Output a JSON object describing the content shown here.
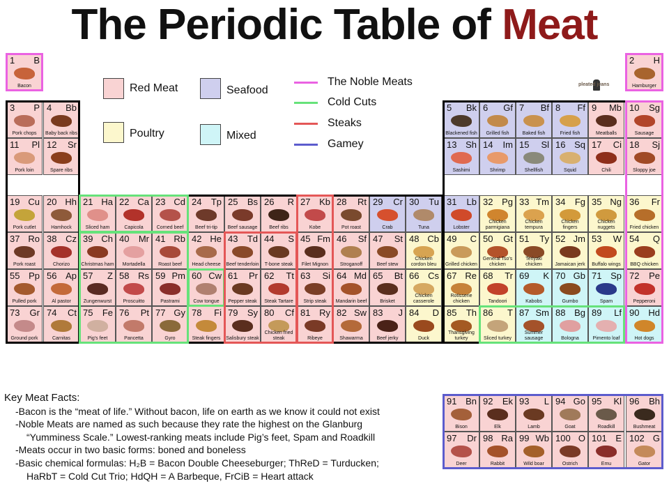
{
  "title": {
    "main": "The Periodic Table of",
    "accent": "Meat"
  },
  "colors": {
    "red_meat": "#f9d3d3",
    "poultry": "#fcf7cd",
    "seafood": "#cfcfee",
    "mixed": "#cff5f7",
    "noble": "#ea62e2",
    "cold_cuts": "#66e27a",
    "steaks": "#e45757",
    "gamey": "#5c5ccd",
    "frame": "#000000",
    "accent": "#8e1a1a"
  },
  "legend": {
    "categories": [
      {
        "label": "Red Meat",
        "cat": "red_meat"
      },
      {
        "label": "Poultry",
        "cat": "poultry"
      },
      {
        "label": "Seafood",
        "cat": "seafood"
      },
      {
        "label": "Mixed",
        "cat": "mixed"
      }
    ],
    "groups": [
      {
        "label": "The Noble Meats",
        "group": "noble"
      },
      {
        "label": "Cold Cuts",
        "group": "cold_cuts"
      },
      {
        "label": "Steaks",
        "group": "steaks"
      },
      {
        "label": "Gamey",
        "group": "gamey"
      }
    ]
  },
  "logo": {
    "text": "pleated jeans"
  },
  "elements": [
    {
      "n": "1",
      "s": "B",
      "name": "Bacon",
      "row": 1,
      "col": 1,
      "cat": "red_meat",
      "pic": "#c7633a"
    },
    {
      "n": "2",
      "s": "H",
      "name": "Hamburger",
      "row": 1,
      "col": 18,
      "cat": "red_meat",
      "pic": "#a8642e"
    },
    {
      "n": "3",
      "s": "P",
      "name": "Pork chops",
      "row": 2,
      "col": 1,
      "cat": "red_meat",
      "pic": "#b96d5a"
    },
    {
      "n": "4",
      "s": "Bb",
      "name": "Baby back ribs",
      "row": 2,
      "col": 2,
      "cat": "red_meat",
      "pic": "#7a3a1e"
    },
    {
      "n": "5",
      "s": "Bk",
      "name": "Blackened fish",
      "row": 2,
      "col": 13,
      "cat": "seafood",
      "pic": "#4d3a2a"
    },
    {
      "n": "6",
      "s": "Gf",
      "name": "Grilled fish",
      "row": 2,
      "col": 14,
      "cat": "seafood",
      "pic": "#c28a4a"
    },
    {
      "n": "7",
      "s": "Bf",
      "name": "Baked fish",
      "row": 2,
      "col": 15,
      "cat": "seafood",
      "pic": "#c9924e"
    },
    {
      "n": "8",
      "s": "Ff",
      "name": "Fried fish",
      "row": 2,
      "col": 16,
      "cat": "seafood",
      "pic": "#d6a04a"
    },
    {
      "n": "9",
      "s": "Mb",
      "name": "Meatballs",
      "row": 2,
      "col": 17,
      "cat": "red_meat",
      "pic": "#5a2e1e"
    },
    {
      "n": "10",
      "s": "Sg",
      "name": "Sausage",
      "row": 2,
      "col": 18,
      "cat": "red_meat",
      "pic": "#b2452a"
    },
    {
      "n": "11",
      "s": "Pl",
      "name": "Pork loin",
      "row": 3,
      "col": 1,
      "cat": "red_meat",
      "pic": "#d99a7a"
    },
    {
      "n": "12",
      "s": "Sr",
      "name": "Spare ribs",
      "row": 3,
      "col": 2,
      "cat": "red_meat",
      "pic": "#8a3e1c"
    },
    {
      "n": "13",
      "s": "Sh",
      "name": "Sashimi",
      "row": 3,
      "col": 13,
      "cat": "seafood",
      "pic": "#e06a50"
    },
    {
      "n": "14",
      "s": "Im",
      "name": "Shrimp",
      "row": 3,
      "col": 14,
      "cat": "seafood",
      "pic": "#e89a6a"
    },
    {
      "n": "15",
      "s": "Sl",
      "name": "Shellfish",
      "row": 3,
      "col": 15,
      "cat": "seafood",
      "pic": "#8a8a7a"
    },
    {
      "n": "16",
      "s": "Sq",
      "name": "Squid",
      "row": 3,
      "col": 16,
      "cat": "seafood",
      "pic": "#d8b070"
    },
    {
      "n": "17",
      "s": "Ci",
      "name": "Chili",
      "row": 3,
      "col": 17,
      "cat": "red_meat",
      "pic": "#8e2e1a"
    },
    {
      "n": "18",
      "s": "Sj",
      "name": "Sloppy joe",
      "row": 3,
      "col": 18,
      "cat": "red_meat",
      "pic": "#a04a26"
    },
    {
      "n": "19",
      "s": "Cu",
      "name": "Pork cutlet",
      "row": 4,
      "col": 1,
      "cat": "red_meat",
      "pic": "#c4a43a"
    },
    {
      "n": "20",
      "s": "Hh",
      "name": "Hamhock",
      "row": 4,
      "col": 2,
      "cat": "red_meat",
      "pic": "#8e5a3a"
    },
    {
      "n": "21",
      "s": "Ha",
      "name": "Sliced ham",
      "row": 4,
      "col": 3,
      "cat": "red_meat",
      "pic": "#e0908a"
    },
    {
      "n": "22",
      "s": "Ca",
      "name": "Capicola",
      "row": 4,
      "col": 4,
      "cat": "red_meat",
      "pic": "#b2322a"
    },
    {
      "n": "23",
      "s": "Cd",
      "name": "Corned beef",
      "row": 4,
      "col": 5,
      "cat": "red_meat",
      "pic": "#b4524a"
    },
    {
      "n": "24",
      "s": "Tp",
      "name": "Beef tri-tip",
      "row": 4,
      "col": 6,
      "cat": "red_meat",
      "pic": "#6e3a2a"
    },
    {
      "n": "25",
      "s": "Bs",
      "name": "Beef sausage",
      "row": 4,
      "col": 7,
      "cat": "red_meat",
      "pic": "#7a3a2a"
    },
    {
      "n": "26",
      "s": "R",
      "name": "Beef ribs",
      "row": 4,
      "col": 8,
      "cat": "red_meat",
      "pic": "#3e2418"
    },
    {
      "n": "27",
      "s": "Kb",
      "name": "Kobe",
      "row": 4,
      "col": 9,
      "cat": "red_meat",
      "pic": "#c24a4a"
    },
    {
      "n": "28",
      "s": "Rt",
      "name": "Pot roast",
      "row": 4,
      "col": 10,
      "cat": "red_meat",
      "pic": "#7a4a2e"
    },
    {
      "n": "29",
      "s": "Cr",
      "name": "Crab",
      "row": 4,
      "col": 11,
      "cat": "seafood",
      "pic": "#d6502e"
    },
    {
      "n": "30",
      "s": "Tu",
      "name": "Tuna",
      "row": 4,
      "col": 12,
      "cat": "seafood",
      "pic": "#b08a6a"
    },
    {
      "n": "31",
      "s": "Lb",
      "name": "Lobster",
      "row": 4,
      "col": 13,
      "cat": "seafood",
      "pic": "#d04a2a"
    },
    {
      "n": "32",
      "s": "Pg",
      "name": "Chicken parmigiana",
      "row": 4,
      "col": 14,
      "cat": "poultry",
      "pic": "#d0852e"
    },
    {
      "n": "33",
      "s": "Tm",
      "name": "Chicken tempura",
      "row": 4,
      "col": 15,
      "cat": "poultry",
      "pic": "#dba24e"
    },
    {
      "n": "34",
      "s": "Fg",
      "name": "Chicken fingers",
      "row": 4,
      "col": 16,
      "cat": "poultry",
      "pic": "#d39a3a"
    },
    {
      "n": "35",
      "s": "Ng",
      "name": "Chicken nuggets",
      "row": 4,
      "col": 17,
      "cat": "poultry",
      "pic": "#d09a3e"
    },
    {
      "n": "36",
      "s": "Fr",
      "name": "Fried chicken",
      "row": 4,
      "col": 18,
      "cat": "poultry",
      "pic": "#b66e2a"
    },
    {
      "n": "37",
      "s": "Ro",
      "name": "Pork roast",
      "row": 5,
      "col": 1,
      "cat": "red_meat",
      "pic": "#6e3a26"
    },
    {
      "n": "38",
      "s": "Cz",
      "name": "Chorizo",
      "row": 5,
      "col": 2,
      "cat": "red_meat",
      "pic": "#a4322a"
    },
    {
      "n": "39",
      "s": "Ch",
      "name": "Christmas ham",
      "row": 5,
      "col": 3,
      "cat": "red_meat",
      "pic": "#8a3a22"
    },
    {
      "n": "40",
      "s": "Mr",
      "name": "Mortadella",
      "row": 5,
      "col": 4,
      "cat": "red_meat",
      "pic": "#e4a0a0"
    },
    {
      "n": "41",
      "s": "Rb",
      "name": "Roast beef",
      "row": 5,
      "col": 5,
      "cat": "red_meat",
      "pic": "#a84a3a"
    },
    {
      "n": "42",
      "s": "He",
      "name": "Head cheese",
      "row": 5,
      "col": 6,
      "cat": "red_meat",
      "pic": "#a86a4a"
    },
    {
      "n": "43",
      "s": "Td",
      "name": "Beef tenderloin",
      "row": 5,
      "col": 7,
      "cat": "red_meat",
      "pic": "#8a4a2a"
    },
    {
      "n": "44",
      "s": "S",
      "name": "T-bone steak",
      "row": 5,
      "col": 8,
      "cat": "red_meat",
      "pic": "#6a3a22"
    },
    {
      "n": "45",
      "s": "Fm",
      "name": "Filet Mignon",
      "row": 5,
      "col": 9,
      "cat": "red_meat",
      "pic": "#5a2e1e"
    },
    {
      "n": "46",
      "s": "Sf",
      "name": "Stroganoff",
      "row": 5,
      "col": 10,
      "cat": "red_meat",
      "pic": "#b08050"
    },
    {
      "n": "47",
      "s": "St",
      "name": "Beef stew",
      "row": 5,
      "col": 11,
      "cat": "red_meat",
      "pic": "#8a4a26"
    },
    {
      "n": "48",
      "s": "Cb",
      "name": "Chicken cordon bleu",
      "row": 5,
      "col": 12,
      "cat": "poultry",
      "pic": "#d7a452"
    },
    {
      "n": "49",
      "s": "C",
      "name": "Grilled chicken",
      "row": 5,
      "col": 13,
      "cat": "poultry",
      "pic": "#c99a5a"
    },
    {
      "n": "50",
      "s": "Gt",
      "name": "General Tso's chicken",
      "row": 5,
      "col": 14,
      "cat": "poultry",
      "pic": "#b4532a"
    },
    {
      "n": "51",
      "s": "Ty",
      "name": "Teriyaki chicken",
      "row": 5,
      "col": 15,
      "cat": "poultry",
      "pic": "#8a4a26"
    },
    {
      "n": "52",
      "s": "Jm",
      "name": "Jamaican jerk",
      "row": 5,
      "col": 16,
      "cat": "poultry",
      "pic": "#7a3a1e"
    },
    {
      "n": "53",
      "s": "W",
      "name": "Buffalo wings",
      "row": 5,
      "col": 17,
      "cat": "poultry",
      "pic": "#c24a1e"
    },
    {
      "n": "54",
      "s": "Q",
      "name": "BBQ chicken",
      "row": 5,
      "col": 18,
      "cat": "poultry",
      "pic": "#9a3e1e"
    },
    {
      "n": "55",
      "s": "Pp",
      "name": "Pulled pork",
      "row": 6,
      "col": 1,
      "cat": "red_meat",
      "pic": "#a45a2e"
    },
    {
      "n": "56",
      "s": "Ap",
      "name": "Al pastor",
      "row": 6,
      "col": 2,
      "cat": "red_meat",
      "pic": "#c46a3a"
    },
    {
      "n": "57",
      "s": "Z",
      "name": "Zungenwurst",
      "row": 6,
      "col": 3,
      "cat": "red_meat",
      "pic": "#5a2a22"
    },
    {
      "n": "58",
      "s": "Rs",
      "name": "Proscuitto",
      "row": 6,
      "col": 4,
      "cat": "red_meat",
      "pic": "#c24a4a"
    },
    {
      "n": "59",
      "s": "Pm",
      "name": "Pastrami",
      "row": 6,
      "col": 5,
      "cat": "red_meat",
      "pic": "#8a2e2a"
    },
    {
      "n": "60",
      "s": "Cw",
      "name": "Cow tongue",
      "row": 6,
      "col": 6,
      "cat": "red_meat",
      "pic": "#b08070"
    },
    {
      "n": "61",
      "s": "Pr",
      "name": "Pepper steak",
      "row": 6,
      "col": 7,
      "cat": "red_meat",
      "pic": "#6a3a22"
    },
    {
      "n": "62",
      "s": "Tt",
      "name": "Steak Tartare",
      "row": 6,
      "col": 8,
      "cat": "red_meat",
      "pic": "#b23a2e"
    },
    {
      "n": "63",
      "s": "Si",
      "name": "Strip steak",
      "row": 6,
      "col": 9,
      "cat": "red_meat",
      "pic": "#7a3e26"
    },
    {
      "n": "64",
      "s": "Md",
      "name": "Mandarin beef",
      "row": 6,
      "col": 10,
      "cat": "red_meat",
      "pic": "#a4522a"
    },
    {
      "n": "65",
      "s": "Bt",
      "name": "Brisket",
      "row": 6,
      "col": 11,
      "cat": "red_meat",
      "pic": "#5a2e1e"
    },
    {
      "n": "66",
      "s": "Cs",
      "name": "Chicken casserole",
      "row": 6,
      "col": 12,
      "cat": "poultry",
      "pic": "#d6a860"
    },
    {
      "n": "67",
      "s": "Re",
      "name": "Rotisserie chicken",
      "row": 6,
      "col": 13,
      "cat": "poultry",
      "pic": "#c6823a"
    },
    {
      "n": "68",
      "s": "Tr",
      "name": "Tandoori",
      "row": 6,
      "col": 14,
      "cat": "poultry",
      "pic": "#c2422a"
    },
    {
      "n": "69",
      "s": "K",
      "name": "Kabobs",
      "row": 6,
      "col": 15,
      "cat": "mixed",
      "pic": "#b45a2a"
    },
    {
      "n": "70",
      "s": "Gb",
      "name": "Gumbo",
      "row": 6,
      "col": 16,
      "cat": "mixed",
      "pic": "#8a4a1e"
    },
    {
      "n": "71",
      "s": "Sp",
      "name": "Spam",
      "row": 6,
      "col": 17,
      "cat": "mixed",
      "pic": "#2a3a8a"
    },
    {
      "n": "72",
      "s": "Pe",
      "name": "Pepperoni",
      "row": 6,
      "col": 18,
      "cat": "red_meat",
      "pic": "#c2322a"
    },
    {
      "n": "73",
      "s": "Gr",
      "name": "Ground pork",
      "row": 7,
      "col": 1,
      "cat": "red_meat",
      "pic": "#c48a8a"
    },
    {
      "n": "74",
      "s": "Ct",
      "name": "Carnitas",
      "row": 7,
      "col": 2,
      "cat": "red_meat",
      "pic": "#b07a3a"
    },
    {
      "n": "75",
      "s": "Fe",
      "name": "Pig's feet",
      "row": 7,
      "col": 3,
      "cat": "red_meat",
      "pic": "#d0b0a0"
    },
    {
      "n": "76",
      "s": "Pt",
      "name": "Pancetta",
      "row": 7,
      "col": 4,
      "cat": "red_meat",
      "pic": "#c27a6a"
    },
    {
      "n": "77",
      "s": "Gy",
      "name": "Gyro",
      "row": 7,
      "col": 5,
      "cat": "red_meat",
      "pic": "#8a6a3a"
    },
    {
      "n": "78",
      "s": "Fi",
      "name": "Steak fingers",
      "row": 7,
      "col": 6,
      "cat": "red_meat",
      "pic": "#c48a3a"
    },
    {
      "n": "79",
      "s": "Sy",
      "name": "Salisbury steak",
      "row": 7,
      "col": 7,
      "cat": "red_meat",
      "pic": "#5a2e1e"
    },
    {
      "n": "80",
      "s": "Cf",
      "name": "Chicken fried steak",
      "row": 7,
      "col": 8,
      "cat": "red_meat",
      "pic": "#c49a5a"
    },
    {
      "n": "81",
      "s": "Ry",
      "name": "Ribeye",
      "row": 7,
      "col": 9,
      "cat": "red_meat",
      "pic": "#7a3a26"
    },
    {
      "n": "82",
      "s": "Sw",
      "name": "Shawarma",
      "row": 7,
      "col": 10,
      "cat": "red_meat",
      "pic": "#b46a3a"
    },
    {
      "n": "83",
      "s": "J",
      "name": "Beef jerky",
      "row": 7,
      "col": 11,
      "cat": "red_meat",
      "pic": "#4a2218"
    },
    {
      "n": "84",
      "s": "D",
      "name": "Duck",
      "row": 7,
      "col": 12,
      "cat": "poultry",
      "pic": "#9a4a1e"
    },
    {
      "n": "85",
      "s": "Th",
      "name": "Thansgiving turkey",
      "row": 7,
      "col": 13,
      "cat": "poultry",
      "pic": "#a45a22"
    },
    {
      "n": "86",
      "s": "T",
      "name": "Sliced turkey",
      "row": 7,
      "col": 14,
      "cat": "poultry",
      "pic": "#c4a47a"
    },
    {
      "n": "87",
      "s": "Sm",
      "name": "Summer sausage",
      "row": 7,
      "col": 15,
      "cat": "mixed",
      "pic": "#a4522a"
    },
    {
      "n": "88",
      "s": "Bg",
      "name": "Bologna",
      "row": 7,
      "col": 16,
      "cat": "mixed",
      "pic": "#e0a0a0"
    },
    {
      "n": "89",
      "s": "Lf",
      "name": "Pimento loaf",
      "row": 7,
      "col": 17,
      "cat": "mixed",
      "pic": "#e4b0b0"
    },
    {
      "n": "90",
      "s": "Hd",
      "name": "Hot dogs",
      "row": 7,
      "col": 18,
      "cat": "mixed",
      "pic": "#d0862a"
    },
    {
      "n": "91",
      "s": "Bn",
      "name": "Bison",
      "row": 9,
      "col": 13,
      "cat": "red_meat",
      "pic": "#a4603a"
    },
    {
      "n": "92",
      "s": "Ek",
      "name": "Elk",
      "row": 9,
      "col": 14,
      "cat": "red_meat",
      "pic": "#5a2e1e"
    },
    {
      "n": "93",
      "s": "L",
      "name": "Lamb",
      "row": 9,
      "col": 15,
      "cat": "red_meat",
      "pic": "#6a3a22"
    },
    {
      "n": "94",
      "s": "Go",
      "name": "Goat",
      "row": 9,
      "col": 16,
      "cat": "red_meat",
      "pic": "#a07a5a"
    },
    {
      "n": "95",
      "s": "Kl",
      "name": "Roadkill",
      "row": 9,
      "col": 17,
      "cat": "red_meat",
      "pic": "#6a5a4a"
    },
    {
      "n": "96",
      "s": "Bh",
      "name": "Bushmeat",
      "row": 9,
      "col": 18,
      "cat": "red_meat",
      "pic": "#3a2a1e"
    },
    {
      "n": "97",
      "s": "Dr",
      "name": "Deer",
      "row": 10,
      "col": 13,
      "cat": "red_meat",
      "pic": "#b4524a"
    },
    {
      "n": "98",
      "s": "Ra",
      "name": "Rabbit",
      "row": 10,
      "col": 14,
      "cat": "red_meat",
      "pic": "#a4522a"
    },
    {
      "n": "99",
      "s": "Wb",
      "name": "Wild boar",
      "row": 10,
      "col": 15,
      "cat": "red_meat",
      "pic": "#a4602a"
    },
    {
      "n": "100",
      "s": "O",
      "name": "Ostrich",
      "row": 10,
      "col": 16,
      "cat": "red_meat",
      "pic": "#7a3a26"
    },
    {
      "n": "101",
      "s": "E",
      "name": "Emu",
      "row": 10,
      "col": 17,
      "cat": "red_meat",
      "pic": "#8a2e2a"
    },
    {
      "n": "102",
      "s": "G",
      "name": "Gator",
      "row": 10,
      "col": 18,
      "cat": "red_meat",
      "pic": "#c48a5a"
    }
  ],
  "facts": {
    "title": "Key Meat Facts:",
    "lines": [
      {
        "text": "-Bacon is the “meat of life.” Without bacon, life on earth as we know it could not exist",
        "indent": false
      },
      {
        "text": "-Noble Meats are named as such because they rate the highest on the Glanburg",
        "indent": false
      },
      {
        "text": "“Yumminess Scale.” Lowest-ranking meats include Pig’s feet, Spam and Roadkill",
        "indent": true
      },
      {
        "text": "-Meats occur in two basic forms: boned and boneless",
        "indent": false
      },
      {
        "text": "-Basic chemical formulas: H₂B = Bacon Double Cheeseburger; ThReD = Turducken;",
        "indent": false
      },
      {
        "text": "HaRbT = Cold Cut Trio; HdQH = A Barbeque, FrCiB = Heart attack",
        "indent": true
      }
    ]
  }
}
